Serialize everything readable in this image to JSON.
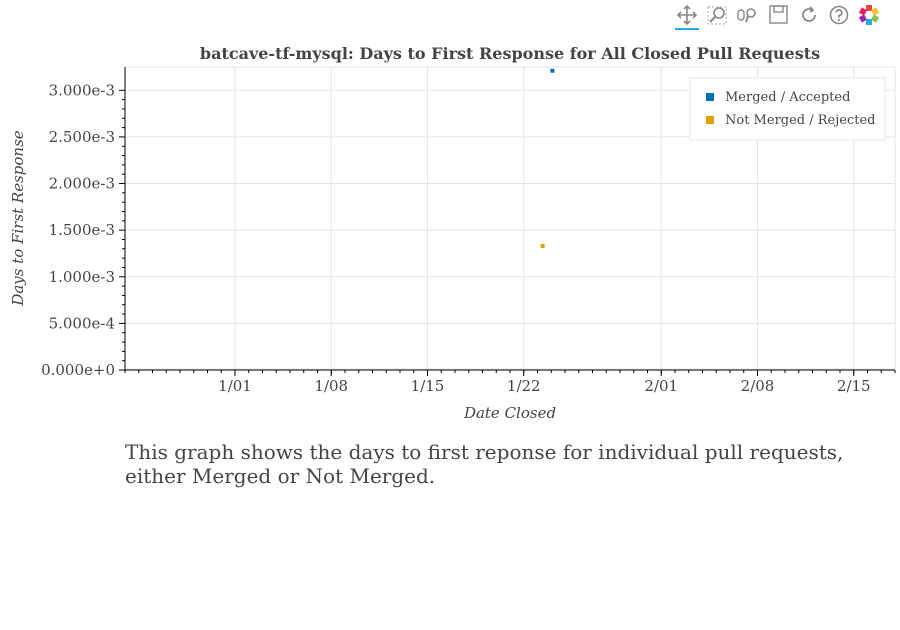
{
  "toolbar": {
    "tools": [
      {
        "name": "pan-tool-icon",
        "active": true
      },
      {
        "name": "box-zoom-tool-icon",
        "active": false
      },
      {
        "name": "wheel-zoom-tool-icon",
        "active": false
      },
      {
        "name": "save-tool-icon",
        "active": false
      },
      {
        "name": "reset-tool-icon",
        "active": false
      },
      {
        "name": "help-tool-icon",
        "active": false
      },
      {
        "name": "bokeh-logo-icon",
        "active": false
      }
    ]
  },
  "chart_data": {
    "type": "scatter",
    "title": "batcave-tf-mysql: Days to First Response for All Closed Pull Requests",
    "xlabel": "Date Closed",
    "ylabel": "Days to First Response",
    "x_type": "datetime",
    "xlim": [
      "2022-12-24",
      "2023-02-18"
    ],
    "ylim": [
      0,
      0.00325
    ],
    "x_ticks": [
      {
        "date": "2023-01-01",
        "label": "1/01"
      },
      {
        "date": "2023-01-08",
        "label": "1/08"
      },
      {
        "date": "2023-01-15",
        "label": "1/15"
      },
      {
        "date": "2023-01-22",
        "label": "1/22"
      },
      {
        "date": "2023-02-01",
        "label": "2/01"
      },
      {
        "date": "2023-02-08",
        "label": "2/08"
      },
      {
        "date": "2023-02-15",
        "label": "2/15"
      }
    ],
    "y_ticks": [
      {
        "value": 0,
        "label": "0.000e+0"
      },
      {
        "value": 0.0005,
        "label": "5.000e-4"
      },
      {
        "value": 0.001,
        "label": "1.000e-3"
      },
      {
        "value": 0.0015,
        "label": "1.500e-3"
      },
      {
        "value": 0.002,
        "label": "2.000e-3"
      },
      {
        "value": 0.0025,
        "label": "2.500e-3"
      },
      {
        "value": 0.003,
        "label": "3.000e-3"
      }
    ],
    "grid": true,
    "legend_position": "top-right",
    "series": [
      {
        "name": "Merged / Accepted",
        "color": "#0072b2",
        "points": [
          {
            "x": "2023-01-24T02:00:00",
            "y": 0.00321
          }
        ]
      },
      {
        "name": "Not Merged / Rejected",
        "color": "#e69f00",
        "points": [
          {
            "x": "2023-01-23T09:00:00",
            "y": 0.00133
          }
        ]
      }
    ]
  },
  "description": "This graph shows the days to first reponse for individual pull requests, either Merged or Not Merged."
}
